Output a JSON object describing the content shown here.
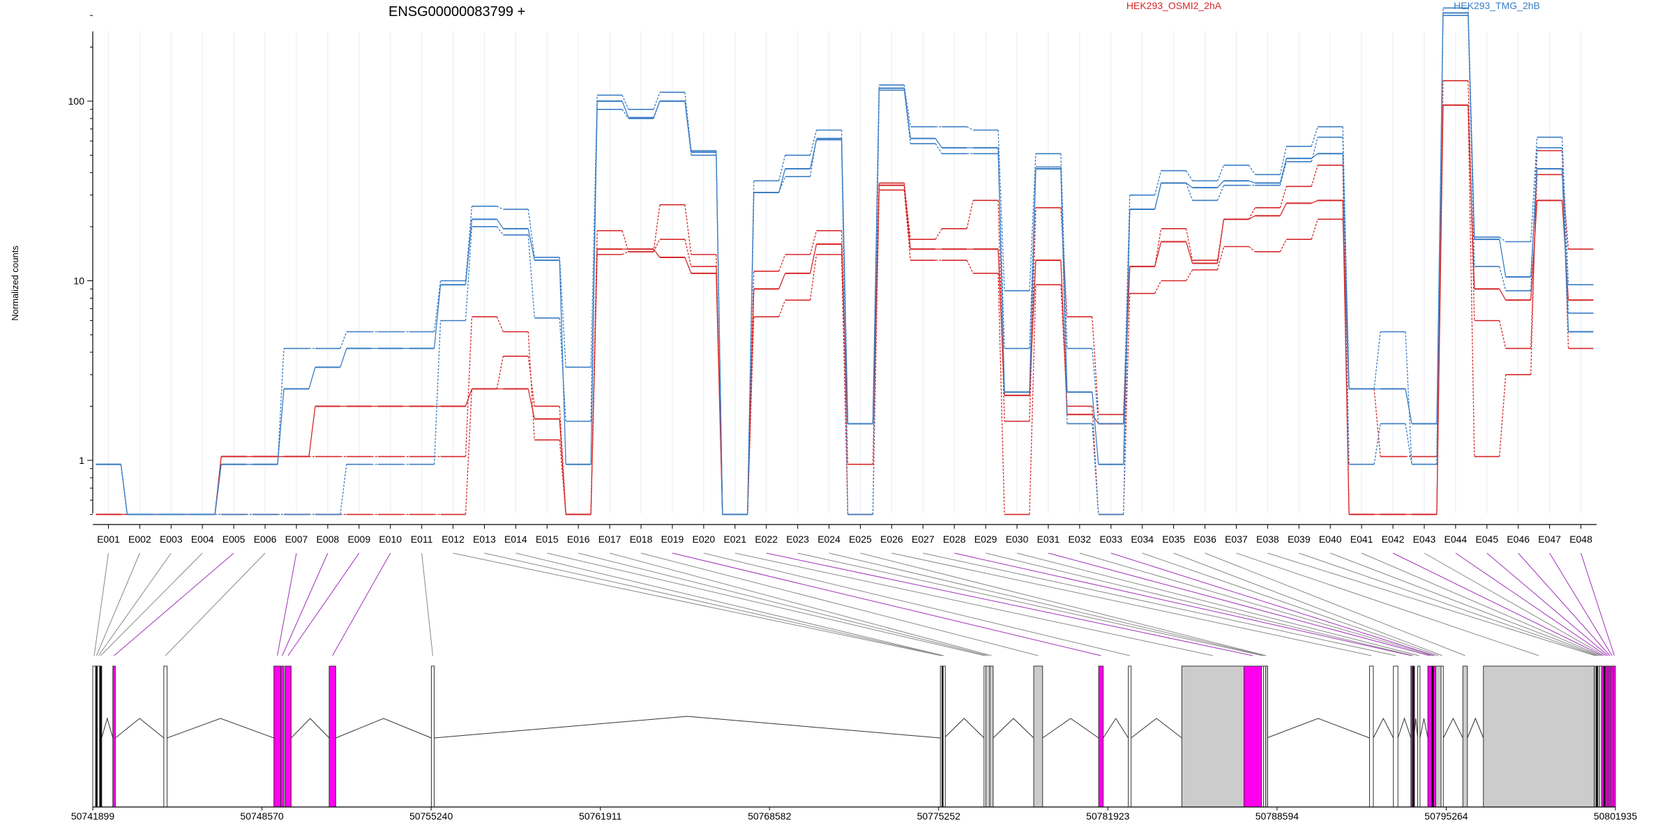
{
  "chart_data": {
    "type": "line",
    "title": "ENSG00000083799 +",
    "ylabel": "Normalized counts",
    "yscale": "log",
    "ylim": [
      0.5,
      400
    ],
    "yticks": [
      "1",
      "10",
      "100"
    ],
    "ytick_values": [
      1,
      10,
      100
    ],
    "categories": [
      "E001",
      "E002",
      "E003",
      "E004",
      "E005",
      "E006",
      "E007",
      "E008",
      "E009",
      "E010",
      "E011",
      "E012",
      "E013",
      "E014",
      "E015",
      "E016",
      "E017",
      "E018",
      "E019",
      "E020",
      "E021",
      "E022",
      "E023",
      "E024",
      "E025",
      "E026",
      "E027",
      "E028",
      "E029",
      "E030",
      "E031",
      "E032",
      "E033",
      "E034",
      "E035",
      "E036",
      "E037",
      "E038",
      "E039",
      "E040",
      "E041",
      "E042",
      "E043",
      "E044",
      "E045",
      "E046",
      "E047",
      "E048"
    ],
    "legend": [
      {
        "name": "HEK293_OSMI2_2hA",
        "color": "#d62728"
      },
      {
        "name": "HEK293_TMG_2hB",
        "color": "#3a7dc4"
      }
    ],
    "series": [
      {
        "name": "r1",
        "group": "HEK293_OSMI2_2hA",
        "color": "#d62728",
        "solid": true,
        "values": [
          0.5,
          0.5,
          0.5,
          0.5,
          1.05,
          1.05,
          1.05,
          2.0,
          2.0,
          2.0,
          2.0,
          2.0,
          2.5,
          2.5,
          1.7,
          0.5,
          15,
          15,
          13.5,
          11,
          0.5,
          9,
          11,
          16,
          1.6,
          34,
          15,
          15,
          15,
          2.3,
          13,
          1.8,
          1.6,
          12,
          16.5,
          12.5,
          22,
          23,
          27,
          28,
          0.5,
          0.5,
          0.5,
          95,
          9,
          7.8,
          28,
          7.8
        ]
      },
      {
        "name": "r2",
        "group": "HEK293_OSMI2_2hA",
        "color": "#d62728",
        "solid": false,
        "values": [
          0.5,
          0.5,
          0.5,
          0.5,
          1.05,
          1.05,
          1.05,
          1.05,
          1.05,
          1.05,
          1.05,
          1.05,
          6.3,
          5.2,
          1.3,
          0.5,
          19,
          14.5,
          26.5,
          14,
          0.5,
          11.3,
          14,
          19,
          0.95,
          35,
          17,
          19.5,
          28,
          1.65,
          25.5,
          6.3,
          1.8,
          12,
          19.5,
          13,
          22,
          25.5,
          33.5,
          44,
          0.5,
          0.5,
          0.5,
          130,
          6,
          4.2,
          39,
          15
        ]
      },
      {
        "name": "r3",
        "group": "HEK293_OSMI2_2hA",
        "color": "#d62728",
        "solid": false,
        "values": [
          0.5,
          0.5,
          0.5,
          0.5,
          0.5,
          0.5,
          0.5,
          0.5,
          0.5,
          0.5,
          0.5,
          0.5,
          2.5,
          3.8,
          2.0,
          0.5,
          14,
          14.5,
          17,
          12,
          0.5,
          6.3,
          7.8,
          14,
          0.5,
          32,
          13,
          13,
          11,
          0.5,
          9.5,
          2.0,
          0.5,
          8.5,
          10,
          11.5,
          15.5,
          14.5,
          17,
          22,
          2.5,
          1.05,
          1.05,
          95,
          1.05,
          3.0,
          53,
          4.2
        ]
      },
      {
        "name": "b1",
        "group": "HEK293_TMG_2hB",
        "color": "#3a7dc4",
        "solid": true,
        "values": [
          0.95,
          0.5,
          0.5,
          0.5,
          0.95,
          0.95,
          2.5,
          3.3,
          4.2,
          4.2,
          4.2,
          9.5,
          22,
          19.5,
          13,
          0.95,
          100,
          81,
          100,
          52,
          0.5,
          31,
          42,
          61,
          1.6,
          118,
          62,
          55,
          55,
          2.4,
          42,
          2.4,
          0.95,
          25,
          35,
          33,
          36,
          35,
          48,
          51,
          2.5,
          2.5,
          1.6,
          310,
          17,
          10.5,
          42,
          5.2
        ]
      },
      {
        "name": "b2",
        "group": "HEK293_TMG_2hB",
        "color": "#3a7dc4",
        "solid": false,
        "values": [
          0.95,
          0.5,
          0.5,
          0.5,
          0.95,
          0.95,
          4.2,
          4.2,
          5.2,
          5.2,
          5.2,
          10,
          26,
          25,
          13.5,
          3.3,
          108,
          90,
          112,
          53,
          0.5,
          36,
          50,
          69,
          1.6,
          123,
          72,
          72,
          69,
          8.8,
          51,
          4.2,
          1.6,
          30,
          41,
          36,
          44,
          39,
          56,
          72,
          2.5,
          5.2,
          0.95,
          330,
          17.5,
          16.5,
          63,
          9.5
        ]
      },
      {
        "name": "b3",
        "group": "HEK293_TMG_2hB",
        "color": "#3a7dc4",
        "solid": false,
        "values": [
          0.95,
          0.5,
          0.5,
          0.5,
          0.5,
          0.5,
          0.5,
          0.5,
          0.95,
          0.95,
          0.95,
          6.0,
          20,
          18,
          6.2,
          1.65,
          90,
          80,
          100,
          50,
          0.5,
          31,
          38,
          62,
          0.5,
          115,
          58,
          51,
          51,
          4.2,
          43,
          1.6,
          0.5,
          25,
          35,
          28,
          34,
          34,
          46,
          63,
          0.95,
          1.6,
          0.95,
          300,
          12,
          8.8,
          55,
          6.6
        ]
      }
    ],
    "gene_axis": {
      "ticks": [
        "50741899",
        "50748570",
        "50755240",
        "50761911",
        "50768582",
        "50775252",
        "50781923",
        "50788594",
        "50795264",
        "50801935"
      ],
      "tick_values": [
        50741899,
        50748570,
        50755240,
        50761911,
        50768582,
        50775252,
        50781923,
        50788594,
        50795264,
        50801935
      ],
      "range": [
        50741899,
        50801935
      ]
    },
    "exons": [
      {
        "id": "E001",
        "start": 50741899,
        "end": 50742010,
        "color": "#ffffff"
      },
      {
        "id": "E002",
        "start": 50742010,
        "end": 50742080,
        "color": "#000000"
      },
      {
        "id": "E003",
        "start": 50742080,
        "end": 50742170,
        "color": "#ffffff"
      },
      {
        "id": "E004",
        "start": 50742170,
        "end": 50742250,
        "color": "#000000"
      },
      {
        "id": "E005",
        "start": 50742690,
        "end": 50742790,
        "color": "#ff00ee"
      },
      {
        "id": "E006",
        "start": 50744700,
        "end": 50744830,
        "color": "#ffffff"
      },
      {
        "id": "E007",
        "start": 50749040,
        "end": 50749310,
        "color": "#ff00ee"
      },
      {
        "id": "E008",
        "start": 50749310,
        "end": 50749430,
        "color": "#ff00ee"
      },
      {
        "id": "E009",
        "start": 50749480,
        "end": 50749720,
        "color": "#ff00ee"
      },
      {
        "id": "E010",
        "start": 50751220,
        "end": 50751480,
        "color": "#ff00ee"
      },
      {
        "id": "E011",
        "start": 50755250,
        "end": 50755360,
        "color": "#ffffff"
      },
      {
        "id": "E012",
        "start": 50775320,
        "end": 50775380,
        "color": "#ffffff"
      },
      {
        "id": "E013",
        "start": 50775380,
        "end": 50775430,
        "color": "#000000"
      },
      {
        "id": "E014",
        "start": 50775430,
        "end": 50775470,
        "color": "#ffffff"
      },
      {
        "id": "E015",
        "start": 50777040,
        "end": 50777110,
        "color": "#ffffff"
      },
      {
        "id": "E016",
        "start": 50777110,
        "end": 50777270,
        "color": "#cccccc"
      },
      {
        "id": "E017",
        "start": 50777270,
        "end": 50777400,
        "color": "#cccccc"
      },
      {
        "id": "E018",
        "start": 50779000,
        "end": 50779350,
        "color": "#cccccc"
      },
      {
        "id": "E019",
        "start": 50781560,
        "end": 50781740,
        "color": "#ff00ee"
      },
      {
        "id": "E020",
        "start": 50782730,
        "end": 50782840,
        "color": "#ffffff"
      },
      {
        "id": "E021",
        "start": 50784840,
        "end": 50787290,
        "color": "#cccccc"
      },
      {
        "id": "E022",
        "start": 50787290,
        "end": 50787980,
        "color": "#ff00ee"
      },
      {
        "id": "E023",
        "start": 50787980,
        "end": 50788060,
        "color": "#ffffff"
      },
      {
        "id": "E024",
        "start": 50788060,
        "end": 50788140,
        "color": "#ffffff"
      },
      {
        "id": "E025",
        "start": 50788140,
        "end": 50788190,
        "color": "#cccccc"
      },
      {
        "id": "E026",
        "start": 50792240,
        "end": 50792390,
        "color": "#ffffff"
      },
      {
        "id": "E027",
        "start": 50793180,
        "end": 50793360,
        "color": "#ffffff"
      },
      {
        "id": "E028",
        "start": 50793870,
        "end": 50793930,
        "color": "#ff00ee"
      },
      {
        "id": "E029",
        "start": 50793930,
        "end": 50793990,
        "color": "#000000"
      },
      {
        "id": "E030",
        "start": 50794140,
        "end": 50794230,
        "color": "#ffffff"
      },
      {
        "id": "E031",
        "start": 50794540,
        "end": 50794690,
        "color": "#ff00ee"
      },
      {
        "id": "E032",
        "start": 50794690,
        "end": 50794770,
        "color": "#000000"
      },
      {
        "id": "E033",
        "start": 50794770,
        "end": 50794850,
        "color": "#ff00ee"
      },
      {
        "id": "E034",
        "start": 50794850,
        "end": 50795060,
        "color": "#cccccc"
      },
      {
        "id": "E035",
        "start": 50795060,
        "end": 50795150,
        "color": "#ffffff"
      },
      {
        "id": "E036",
        "start": 50795920,
        "end": 50796100,
        "color": "#cccccc"
      },
      {
        "id": "E037",
        "start": 50796730,
        "end": 50801100,
        "color": "#cccccc"
      },
      {
        "id": "E038",
        "start": 50801100,
        "end": 50801170,
        "color": "#cccccc"
      },
      {
        "id": "E039",
        "start": 50801170,
        "end": 50801240,
        "color": "#000000"
      },
      {
        "id": "E040",
        "start": 50801240,
        "end": 50801310,
        "color": "#cccccc"
      },
      {
        "id": "E041",
        "start": 50801310,
        "end": 50801390,
        "color": "#ffffff"
      },
      {
        "id": "E042",
        "start": 50801390,
        "end": 50801470,
        "color": "#ff00ee"
      },
      {
        "id": "E043",
        "start": 50801470,
        "end": 50801540,
        "color": "#000000"
      },
      {
        "id": "E044",
        "start": 50801540,
        "end": 50801610,
        "color": "#ff00ee"
      },
      {
        "id": "E045",
        "start": 50801610,
        "end": 50801680,
        "color": "#ff00ee"
      },
      {
        "id": "E046",
        "start": 50801680,
        "end": 50801750,
        "color": "#ff00ee"
      },
      {
        "id": "E047",
        "start": 50801750,
        "end": 50801850,
        "color": "#ff00ee"
      },
      {
        "id": "E048",
        "start": 50801850,
        "end": 50801935,
        "color": "#ff00ee"
      }
    ]
  }
}
